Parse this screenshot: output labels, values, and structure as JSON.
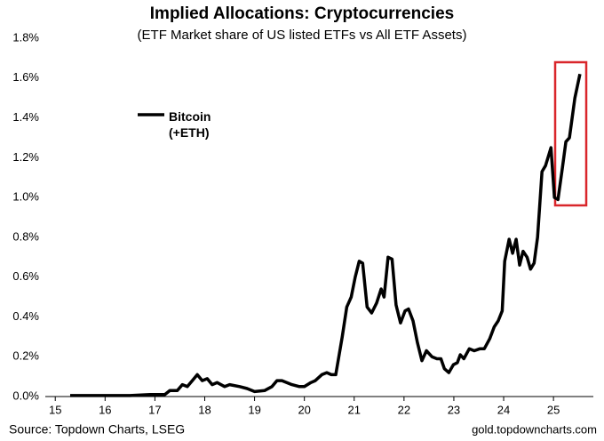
{
  "chart_data": {
    "type": "line",
    "title": "Implied Allocations: Cryptocurrencies",
    "subtitle": "(ETF Market share of US listed ETFs vs All ETF Assets)",
    "source": "Source: Topdown Charts, LSEG",
    "credit": "gold.topdowncharts.com",
    "xlim": [
      14.8,
      25.8
    ],
    "xticks": [
      15,
      16,
      17,
      18,
      19,
      20,
      21,
      22,
      23,
      24,
      25
    ],
    "ylim": [
      0,
      1.8
    ],
    "yticks": [
      {
        "value": 0,
        "label": "0.0%"
      },
      {
        "value": 0.2,
        "label": "0.2%"
      },
      {
        "value": 0.4,
        "label": "0.4%"
      },
      {
        "value": 0.6,
        "label": "0.6%"
      },
      {
        "value": 0.8,
        "label": "0.8%"
      },
      {
        "value": 1.0,
        "label": "1.0%"
      },
      {
        "value": 1.2,
        "label": "1.2%"
      },
      {
        "value": 1.4,
        "label": "1.4%"
      },
      {
        "value": 1.6,
        "label": "1.6%"
      },
      {
        "value": 1.8,
        "label": "1.8%"
      }
    ],
    "grid": false,
    "series": [
      {
        "name": "Bitcoin (+ETH)",
        "color": "#000000",
        "x": [
          15.3,
          16.0,
          16.5,
          16.9,
          17.2,
          17.3,
          17.45,
          17.55,
          17.65,
          17.75,
          17.85,
          17.95,
          18.05,
          18.15,
          18.25,
          18.4,
          18.5,
          18.7,
          18.85,
          19.0,
          19.2,
          19.35,
          19.45,
          19.55,
          19.75,
          19.9,
          20.0,
          20.13,
          20.22,
          20.35,
          20.45,
          20.54,
          20.63,
          20.76,
          20.85,
          20.94,
          21.02,
          21.1,
          21.17,
          21.26,
          21.35,
          21.45,
          21.54,
          21.6,
          21.68,
          21.76,
          21.84,
          21.93,
          22.02,
          22.09,
          22.18,
          22.27,
          22.36,
          22.45,
          22.56,
          22.66,
          22.74,
          22.81,
          22.9,
          22.99,
          23.07,
          23.13,
          23.2,
          23.31,
          23.41,
          23.52,
          23.61,
          23.72,
          23.81,
          23.89,
          23.97,
          24.02,
          24.11,
          24.18,
          24.25,
          24.32,
          24.39,
          24.47,
          24.54,
          24.61,
          24.68,
          24.77,
          24.84,
          24.95,
          25.02,
          25.09,
          25.18,
          25.25,
          25.32,
          25.43,
          25.53
        ],
        "values": [
          0.005,
          0.005,
          0.005,
          0.01,
          0.01,
          0.03,
          0.03,
          0.06,
          0.05,
          0.08,
          0.11,
          0.08,
          0.09,
          0.06,
          0.07,
          0.05,
          0.06,
          0.05,
          0.04,
          0.025,
          0.03,
          0.05,
          0.08,
          0.08,
          0.06,
          0.05,
          0.05,
          0.07,
          0.08,
          0.11,
          0.12,
          0.11,
          0.11,
          0.3,
          0.45,
          0.5,
          0.6,
          0.68,
          0.67,
          0.45,
          0.42,
          0.47,
          0.54,
          0.5,
          0.7,
          0.69,
          0.46,
          0.37,
          0.43,
          0.44,
          0.38,
          0.27,
          0.18,
          0.23,
          0.2,
          0.19,
          0.19,
          0.14,
          0.12,
          0.16,
          0.17,
          0.21,
          0.19,
          0.24,
          0.23,
          0.24,
          0.24,
          0.29,
          0.35,
          0.38,
          0.43,
          0.68,
          0.79,
          0.72,
          0.79,
          0.66,
          0.73,
          0.7,
          0.64,
          0.67,
          0.8,
          1.13,
          1.16,
          1.25,
          1.0,
          0.99,
          1.15,
          1.28,
          1.3,
          1.5,
          1.62
        ]
      }
    ]
  }
}
